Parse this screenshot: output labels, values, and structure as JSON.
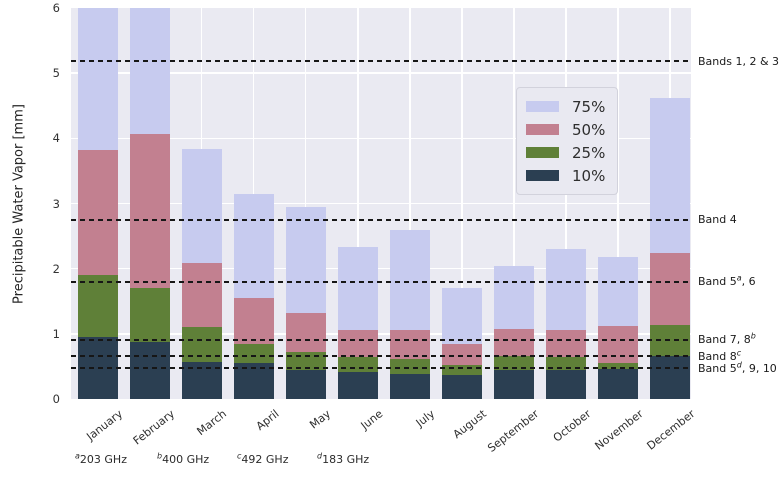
{
  "chart_data": {
    "type": "bar",
    "subtype": "overlaid-percentile-bars",
    "title": "",
    "xlabel": "",
    "ylabel": "Precipitable Water Vapor [mm]",
    "ylim": [
      0,
      6
    ],
    "yticks": [
      0,
      1,
      2,
      3,
      4,
      5,
      6
    ],
    "grid": true,
    "plot_bg": "#eaeaf2",
    "grid_color": "#ffffff",
    "refline_color": "#161616",
    "legend_position": "upper-center-right-inside",
    "categories": [
      "January",
      "February",
      "March",
      "April",
      "May",
      "June",
      "July",
      "August",
      "September",
      "October",
      "November",
      "December"
    ],
    "series": [
      {
        "name": "75%",
        "color": "#c7cbef",
        "values": [
          6.0,
          6.0,
          3.83,
          3.14,
          2.94,
          2.33,
          2.6,
          1.71,
          2.04,
          2.3,
          2.18,
          4.62
        ]
      },
      {
        "name": "50%",
        "color": "#c28090",
        "values": [
          3.82,
          4.07,
          2.09,
          1.55,
          1.32,
          1.06,
          1.06,
          0.84,
          1.08,
          1.06,
          1.12,
          2.24
        ]
      },
      {
        "name": "25%",
        "color": "#5f8038",
        "values": [
          1.9,
          1.7,
          1.1,
          0.85,
          0.72,
          0.65,
          0.61,
          0.52,
          0.66,
          0.64,
          0.56,
          1.14
        ]
      },
      {
        "name": "10%",
        "color": "#2b3f52",
        "values": [
          0.95,
          0.87,
          0.57,
          0.56,
          0.44,
          0.41,
          0.38,
          0.37,
          0.44,
          0.45,
          0.46,
          0.66
        ]
      }
    ],
    "reference_lines": [
      {
        "value": 5.186,
        "label_parts": [
          {
            "t": "Bands 1, 2 & 3"
          }
        ]
      },
      {
        "value": 2.748,
        "label_parts": [
          {
            "t": "Band 4"
          }
        ]
      },
      {
        "value": 1.796,
        "label_parts": [
          {
            "t": "Band 5"
          },
          {
            "sup": "a"
          },
          {
            "t": ", 6"
          }
        ]
      },
      {
        "value": 0.913,
        "label_parts": [
          {
            "t": "Band 7, 8"
          },
          {
            "sup": "b"
          }
        ]
      },
      {
        "value": 0.658,
        "label_parts": [
          {
            "t": "Band 8"
          },
          {
            "sup": "c"
          }
        ]
      },
      {
        "value": 0.472,
        "label_parts": [
          {
            "t": "Band 5"
          },
          {
            "sup": "d"
          },
          {
            "t": ", 9, 10"
          }
        ]
      }
    ],
    "footnotes": [
      {
        "sup": "a",
        "text": "203 GHz"
      },
      {
        "sup": "b",
        "text": "400 GHz"
      },
      {
        "sup": "c",
        "text": "492 GHz"
      },
      {
        "sup": "d",
        "text": "183 GHz"
      }
    ]
  }
}
